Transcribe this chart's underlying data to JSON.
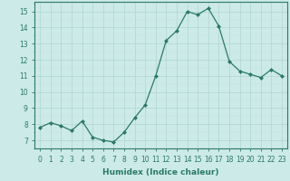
{
  "x": [
    0,
    1,
    2,
    3,
    4,
    5,
    6,
    7,
    8,
    9,
    10,
    11,
    12,
    13,
    14,
    15,
    16,
    17,
    18,
    19,
    20,
    21,
    22,
    23
  ],
  "y": [
    7.8,
    8.1,
    7.9,
    7.6,
    8.2,
    7.2,
    7.0,
    6.9,
    7.5,
    8.4,
    9.2,
    11.0,
    13.2,
    13.8,
    15.0,
    14.8,
    15.2,
    14.1,
    11.9,
    11.3,
    11.1,
    10.9,
    11.4,
    11.0
  ],
  "line_color": "#2a7a6b",
  "marker": "D",
  "marker_size": 2.0,
  "bg_color": "#cceae8",
  "grid_color_major": "#b0d5d2",
  "grid_color_minor": "#c5e4e2",
  "xlabel": "Humidex (Indice chaleur)",
  "ylim": [
    6.5,
    15.6
  ],
  "xlim": [
    -0.5,
    23.5
  ],
  "yticks": [
    7,
    8,
    9,
    10,
    11,
    12,
    13,
    14,
    15
  ],
  "xticks": [
    0,
    1,
    2,
    3,
    4,
    5,
    6,
    7,
    8,
    9,
    10,
    11,
    12,
    13,
    14,
    15,
    16,
    17,
    18,
    19,
    20,
    21,
    22,
    23
  ],
  "tick_fontsize": 5.5,
  "xlabel_fontsize": 6.5,
  "linewidth": 0.9
}
